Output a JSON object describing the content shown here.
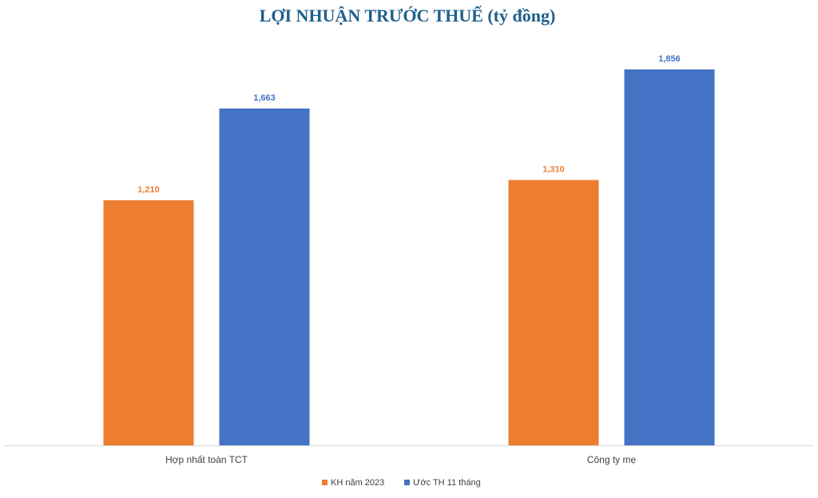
{
  "chart_data": {
    "type": "bar",
    "title": "LỢI NHUẬN TRƯỚC THUẾ (tỷ đồng)",
    "categories": [
      "Hợp nhất toàn TCT",
      "Công ty mẹ"
    ],
    "series": [
      {
        "name": "KH năm 2023",
        "color": "#ed7d31",
        "values": [
          1210,
          1310
        ],
        "value_labels": [
          "1,210",
          "1,310"
        ]
      },
      {
        "name": "Ước TH 11 tháng",
        "color": "#4472c4",
        "values": [
          1663,
          1856
        ],
        "value_labels": [
          "1,663",
          "1,856"
        ]
      }
    ],
    "legend": "bottom"
  }
}
